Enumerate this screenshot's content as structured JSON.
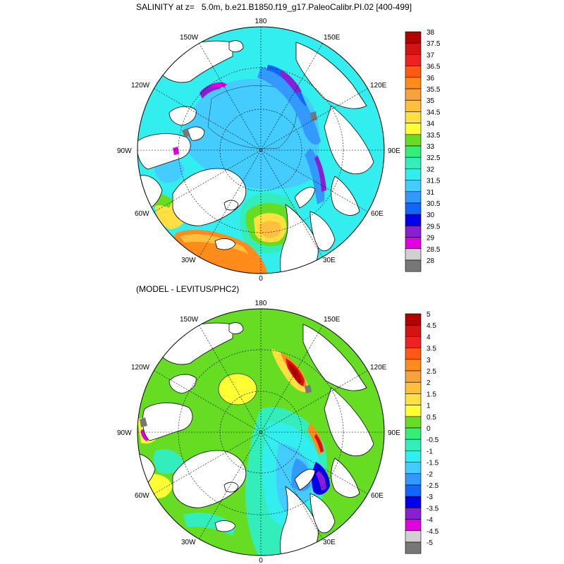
{
  "panel1": {
    "title": "SALINITY at z=   5.0m, b.e21.B1850.f19_g17.PaleoCalibr.PI.02 [400-499]",
    "colorbar": {
      "labels": [
        "38",
        "37.5",
        "37",
        "36.5",
        "36",
        "35.5",
        "35",
        "34.5",
        "34",
        "33.5",
        "33",
        "32.5",
        "32",
        "31.5",
        "31",
        "30.5",
        "30",
        "29.5",
        "29",
        "28.5",
        "28"
      ],
      "colors": [
        "#b30000",
        "#d41313",
        "#ee2222",
        "#ff5a14",
        "#ff8c1a",
        "#f7a23c",
        "#ffbf3f",
        "#ffe040",
        "#ffff33",
        "#66dd22",
        "#33ee77",
        "#33eebb",
        "#33eeee",
        "#44ccff",
        "#3399ff",
        "#1166ff",
        "#0000ee",
        "#8a1ed6",
        "#e000e0",
        "#d0d0d0",
        "#777777"
      ]
    },
    "lon_labels": {
      "top": "180",
      "bottom": "0",
      "left": "90W",
      "right": "90E",
      "nw": "150W",
      "ne": "150E",
      "wnw": "120W",
      "ene": "120E",
      "wsw": "60W",
      "ese": "60E",
      "sw": "30W",
      "se": "30E"
    }
  },
  "panel2": {
    "title": "(MODEL - LEVITUS/PHC2)",
    "colorbar": {
      "labels": [
        "5",
        "4.5",
        "4",
        "3.5",
        "3",
        "2.5",
        "2",
        "1.5",
        "1",
        "0.5",
        "0",
        "-0.5",
        "-1",
        "-1.5",
        "-2",
        "-2.5",
        "-3",
        "-3.5",
        "-4",
        "-4.5",
        "-5"
      ],
      "colors": [
        "#b30000",
        "#d41313",
        "#ee2222",
        "#ff5a14",
        "#ff8c1a",
        "#f7a23c",
        "#ffbf3f",
        "#ffe040",
        "#ffff33",
        "#66dd22",
        "#33ee77",
        "#33eebb",
        "#33eeee",
        "#44ccff",
        "#3399ff",
        "#1166ff",
        "#0000ee",
        "#8a1ed6",
        "#e000e0",
        "#d0d0d0",
        "#777777"
      ]
    },
    "lon_labels": {
      "top": "180",
      "bottom": "0",
      "left": "90W",
      "right": "90E",
      "nw": "150W",
      "ne": "150E",
      "wnw": "120W",
      "ene": "120E",
      "wsw": "60W",
      "ese": "60E",
      "sw": "30W",
      "se": "30E"
    }
  }
}
